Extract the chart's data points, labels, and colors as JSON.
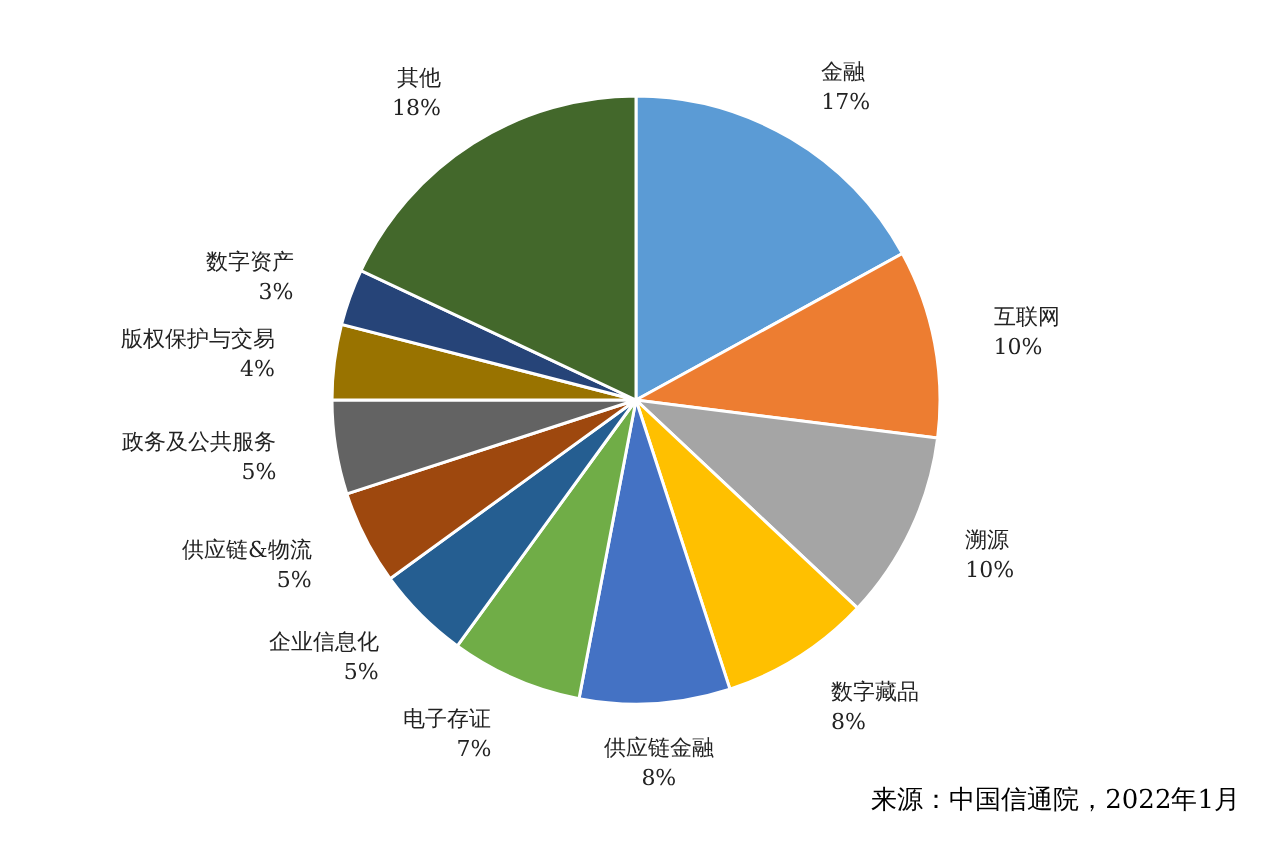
{
  "chart_data": {
    "type": "pie",
    "categories": [
      "金融",
      "互联网",
      "溯源",
      "数字藏品",
      "供应链金融",
      "电子存证",
      "企业信息化",
      "供应链&物流",
      "政务及公共服务",
      "版权保护与交易",
      "数字资产",
      "其他"
    ],
    "values": [
      17,
      10,
      10,
      8,
      8,
      7,
      5,
      5,
      5,
      4,
      3,
      18
    ],
    "colors": [
      "#5b9bd5",
      "#ed7d31",
      "#a5a5a5",
      "#ffc000",
      "#4472c4",
      "#70ad47",
      "#255e91",
      "#9e480e",
      "#636363",
      "#997300",
      "#264478",
      "#43682b"
    ],
    "value_labels": [
      "17%",
      "10%",
      "10%",
      "8%",
      "8%",
      "7%",
      "5%",
      "5%",
      "5%",
      "4%",
      "3%",
      "18%"
    ],
    "annotations": [
      "来源：中国信通院，2022年1月"
    ]
  }
}
